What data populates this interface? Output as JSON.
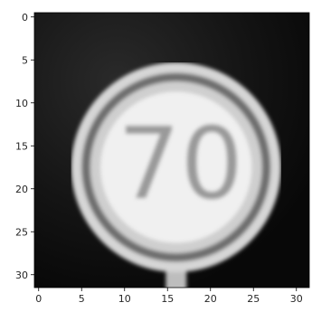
{
  "image": {
    "subject": "speed-limit-sign",
    "sign_text": "70",
    "grid_size": [
      32,
      32
    ],
    "style": "grayscale pixel image"
  },
  "axes": {
    "x_ticks": [
      0,
      5,
      10,
      15,
      20,
      25,
      30
    ],
    "y_ticks": [
      0,
      5,
      10,
      15,
      20,
      25,
      30
    ],
    "xlim": [
      -0.5,
      31.5
    ],
    "ylim": [
      31.5,
      -0.5
    ]
  },
  "colors": {
    "background": "#0a0a0a",
    "ring_outer": "#d6d6d6",
    "ring_dark": "#6e6e6e",
    "face": "#f0f0f0",
    "digits": "#9a9a9a",
    "post": "#bdbdbd",
    "axis": "#000000"
  }
}
